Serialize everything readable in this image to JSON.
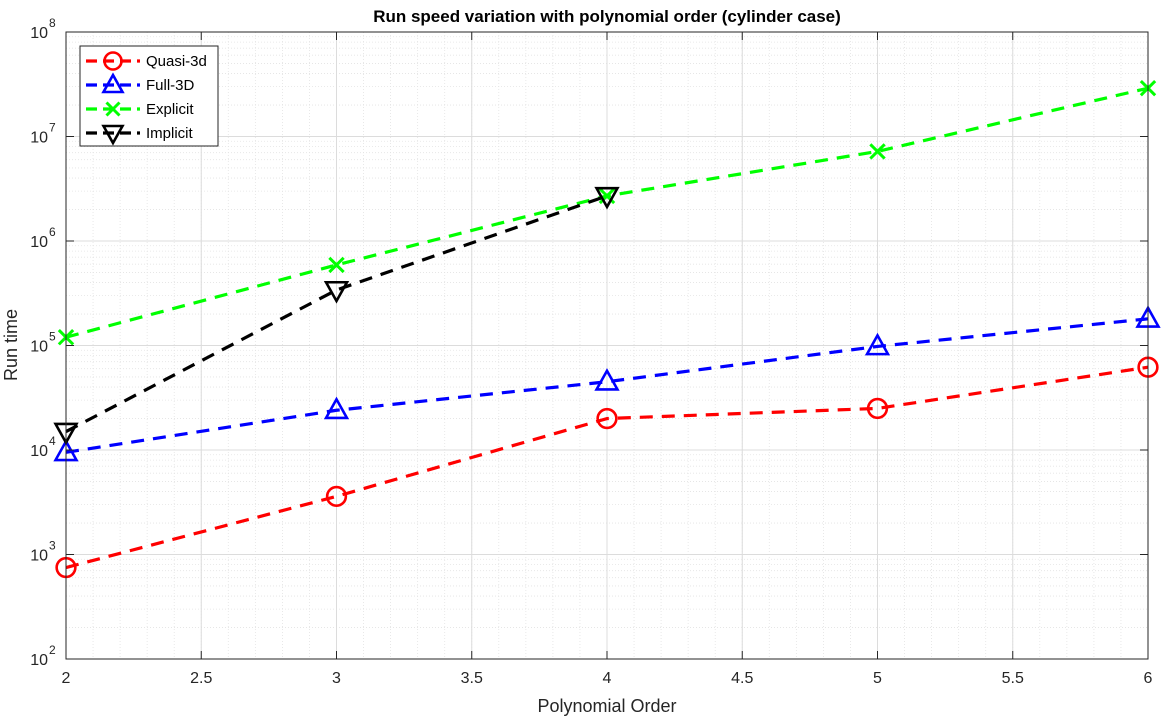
{
  "chart_data": {
    "type": "line",
    "title": "Run speed variation with polynomial order (cylinder case)",
    "xlabel": "Polynomial Order",
    "ylabel": "Run time",
    "xlim": [
      2,
      6
    ],
    "ylim": [
      100,
      100000000
    ],
    "yscale": "log",
    "grid": true,
    "minor_grid": true,
    "legend_position": "top-left",
    "x_ticks": [
      "2",
      "2.5",
      "3",
      "3.5",
      "4",
      "4.5",
      "5",
      "5.5",
      "6"
    ],
    "y_ticks": [
      {
        "base": "10",
        "exp": "2"
      },
      {
        "base": "10",
        "exp": "3"
      },
      {
        "base": "10",
        "exp": "4"
      },
      {
        "base": "10",
        "exp": "5"
      },
      {
        "base": "10",
        "exp": "6"
      },
      {
        "base": "10",
        "exp": "7"
      },
      {
        "base": "10",
        "exp": "8"
      }
    ],
    "series": [
      {
        "name": "Quasi-3d",
        "color": "#ff0000",
        "marker": "circle",
        "x": [
          2,
          3,
          4,
          5,
          6
        ],
        "y": [
          750,
          3600,
          20000,
          25000,
          62000
        ]
      },
      {
        "name": "Full-3D",
        "color": "#0000ff",
        "marker": "triangle-up",
        "x": [
          2,
          3,
          4,
          5,
          6
        ],
        "y": [
          9500,
          24000,
          45000,
          98000,
          180000
        ]
      },
      {
        "name": "Explicit",
        "color": "#00ff00",
        "marker": "x",
        "x": [
          2,
          3,
          4,
          5,
          6
        ],
        "y": [
          120000,
          590000,
          2700000,
          7200000,
          29000000
        ]
      },
      {
        "name": "Implicit",
        "color": "#000000",
        "marker": "triangle-down",
        "x": [
          2,
          3,
          4
        ],
        "y": [
          15000,
          340000,
          2700000
        ]
      }
    ]
  }
}
